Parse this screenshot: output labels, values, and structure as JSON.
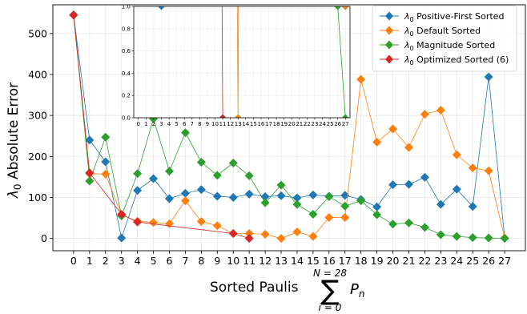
{
  "chart_data": {
    "type": "line",
    "title": "",
    "xlabel": "Sorted Paulis",
    "xlabel_sum": {
      "symbol": "∑",
      "upper": "N = 28",
      "lower": "i = 0",
      "term": "P",
      "term_sub": "n"
    },
    "ylabel": "λ0 Absolute Error",
    "ylabel_parts": {
      "sym": "λ",
      "sub": "0",
      "rest": " Absolute Error"
    },
    "x_ticks": [
      0,
      1,
      2,
      3,
      4,
      5,
      6,
      7,
      8,
      9,
      10,
      11,
      12,
      13,
      14,
      15,
      16,
      17,
      18,
      19,
      20,
      21,
      22,
      23,
      24,
      25,
      26,
      27
    ],
    "xlim": [
      -1.3,
      28.3
    ],
    "ylim": [
      -30,
      570
    ],
    "y_ticks": [
      0,
      100,
      200,
      300,
      400,
      500
    ],
    "grid": true,
    "legend_position": "top-right",
    "series": [
      {
        "name": "λ0 Positive-First Sorted",
        "legend_sym": "λ",
        "legend_sub": "0",
        "legend_rest": " Positive-First Sorted",
        "color": "#1f77b4",
        "x": [
          0,
          1,
          2,
          3,
          4,
          5,
          6,
          7,
          8,
          9,
          10,
          11,
          12,
          13,
          14,
          15,
          16,
          17,
          18,
          19,
          20,
          21,
          22,
          23,
          24,
          25,
          26,
          27
        ],
        "values": [
          545,
          240,
          187,
          1,
          117,
          146,
          97,
          110,
          119,
          103,
          100,
          108,
          102,
          104,
          99,
          106,
          103,
          105,
          95,
          77,
          131,
          132,
          149,
          83,
          120,
          78,
          394,
          1
        ]
      },
      {
        "name": "λ0 Default Sorted",
        "legend_sym": "λ",
        "legend_sub": "0",
        "legend_rest": " Default Sorted",
        "color": "#ff7f0e",
        "x": [
          0,
          1,
          2,
          3,
          4,
          5,
          6,
          7,
          8,
          9,
          10,
          11,
          12,
          13,
          14,
          15,
          16,
          17,
          18,
          19,
          20,
          21,
          22,
          23,
          24,
          25,
          26,
          27
        ],
        "values": [
          545,
          158,
          157,
          57,
          42,
          39,
          36,
          92,
          41,
          31,
          12,
          12,
          10,
          0,
          16,
          5,
          51,
          51,
          388,
          235,
          267,
          222,
          303,
          313,
          204,
          172,
          165,
          1
        ]
      },
      {
        "name": "λ0 Magnitude Sorted",
        "legend_sym": "λ",
        "legend_sub": "0",
        "legend_rest": " Magnitude Sorted",
        "color": "#2ca02c",
        "x": [
          0,
          1,
          2,
          3,
          4,
          5,
          6,
          7,
          8,
          9,
          10,
          11,
          12,
          13,
          14,
          15,
          16,
          17,
          18,
          19,
          20,
          21,
          22,
          23,
          24,
          25,
          26,
          27
        ],
        "values": [
          545,
          140,
          247,
          55,
          158,
          292,
          164,
          258,
          186,
          154,
          184,
          153,
          87,
          130,
          83,
          59,
          102,
          79,
          92,
          58,
          35,
          38,
          27,
          9,
          5,
          2,
          1,
          0
        ]
      },
      {
        "name": "λ0 Optimized Sorted (6)",
        "legend_sym": "λ",
        "legend_sub": "0",
        "legend_rest": " Optimized Sorted (6)",
        "color": "#d62728",
        "x": [
          0,
          1,
          3,
          4,
          10,
          11
        ],
        "values": [
          545,
          160,
          59,
          40,
          12,
          0
        ]
      }
    ],
    "inset": {
      "xlim": [
        -0.6,
        27.6
      ],
      "ylim": [
        0.0,
        1.0
      ],
      "y_ticks": [
        0.0,
        0.2,
        0.4,
        0.6,
        0.8,
        1.0
      ],
      "y_tick_labels": [
        "0.0",
        "0.2",
        "0.4",
        "0.6",
        "0.8",
        "1.0"
      ],
      "x_ticks": [
        0,
        1,
        2,
        3,
        4,
        5,
        6,
        7,
        8,
        9,
        10,
        11,
        12,
        13,
        14,
        15,
        16,
        17,
        18,
        19,
        20,
        21,
        22,
        23,
        24,
        25,
        26,
        27
      ]
    }
  }
}
